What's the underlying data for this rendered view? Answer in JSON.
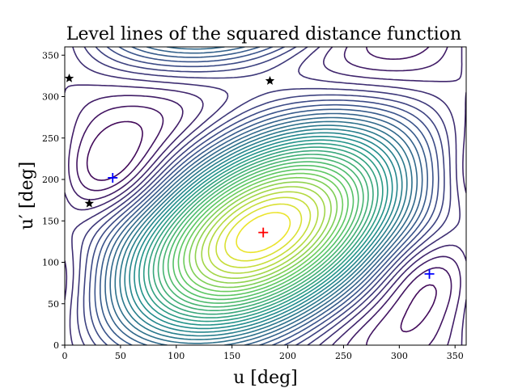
{
  "chart_data": {
    "type": "contour",
    "title": "Level lines of the squared distance function",
    "xlabel": "u [deg]",
    "ylabel": "u′ [deg]",
    "xlim": [
      0,
      360
    ],
    "ylim": [
      0,
      360
    ],
    "x_ticks": [
      0,
      50,
      100,
      150,
      200,
      250,
      300,
      350
    ],
    "y_ticks": [
      0,
      50,
      100,
      150,
      200,
      250,
      300,
      350
    ],
    "grid": false,
    "colormap": [
      "#440154",
      "#3b528b",
      "#21918c",
      "#5ec962",
      "#fde725"
    ],
    "markers": [
      {
        "kind": "plus",
        "color": "#ff0000",
        "x": 178,
        "y": 136
      },
      {
        "kind": "plus",
        "color": "#0000ff",
        "x": 43,
        "y": 202
      },
      {
        "kind": "plus",
        "color": "#0000ff",
        "x": 327,
        "y": 86
      },
      {
        "kind": "star",
        "color": "#000000",
        "x": 4,
        "y": 322
      },
      {
        "kind": "star",
        "color": "#000000",
        "x": 22,
        "y": 171
      },
      {
        "kind": "star",
        "color": "#000000",
        "x": 184,
        "y": 319
      }
    ]
  }
}
